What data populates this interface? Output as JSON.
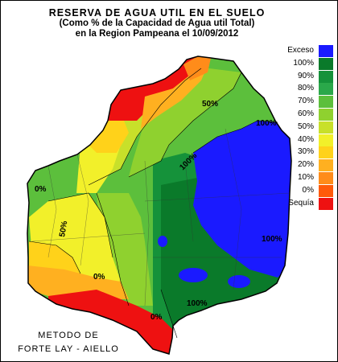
{
  "title": {
    "line1": "RESERVA DE AGUA UTIL EN EL SUELO",
    "line2": "(Como %  de la Capacidad de  Agua util Total)",
    "line3": "en la Region Pampeana el 10/09/2012"
  },
  "legend": [
    {
      "label": "Exceso",
      "color": "#1a1aff"
    },
    {
      "label": "100%",
      "color": "#0a7a2a"
    },
    {
      "label": "90%",
      "color": "#15923a"
    },
    {
      "label": "80%",
      "color": "#2aa84a"
    },
    {
      "label": "70%",
      "color": "#5cbf3c"
    },
    {
      "label": "60%",
      "color": "#8fd12f"
    },
    {
      "label": "50%",
      "color": "#c8e02a"
    },
    {
      "label": "40%",
      "color": "#f2f02a"
    },
    {
      "label": "30%",
      "color": "#ffd21a"
    },
    {
      "label": "20%",
      "color": "#ffb020"
    },
    {
      "label": "10%",
      "color": "#ff8c1a"
    },
    {
      "label": "0%",
      "color": "#ff5a0a"
    },
    {
      "label": "Sequía",
      "color": "#ee1111"
    }
  ],
  "contour_labels": [
    "0%",
    "50%",
    "50%",
    "0%",
    "0%",
    "100%",
    "100%",
    "100%",
    "100%"
  ],
  "method": {
    "line1": "METODO DE",
    "line2": "FORTE LAY - AIELLO"
  }
}
